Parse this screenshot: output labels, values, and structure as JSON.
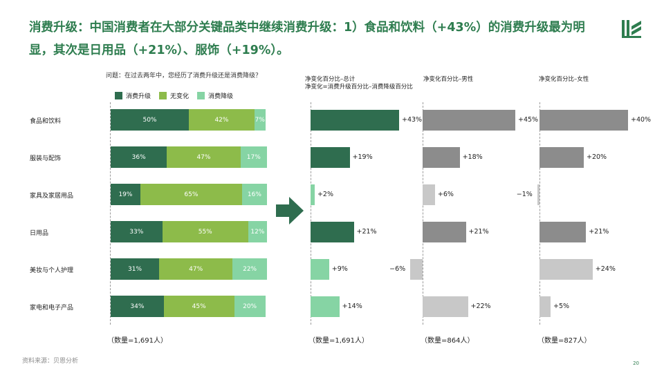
{
  "title": "消费升级：中国消费者在大部分关键品类中继续消费升级：1）食品和饮料（+43%）的消费升级最为明显，其次是日用品（+21%）、服饰（+19%）。",
  "page_number": "20",
  "source_text": "资料来源：贝恩分析",
  "colors": {
    "upgrade": "#2f6d4f",
    "same": "#8dbb4a",
    "downgrade": "#86d4a4",
    "total_dark": "#2f6d4f",
    "total_light": "#86d4a4",
    "gray_dark": "#8c8c8c",
    "gray_light": "#c8c8c8",
    "title": "#2e7d4f"
  },
  "chart_data": [
    {
      "type": "bar",
      "orientation": "horizontal",
      "stacked": true,
      "question": "问题：在过去两年中，您经历了消费升级还是消费降级？",
      "categories": [
        "食品和饮料",
        "服装与配饰",
        "家具及家居用品",
        "日用品",
        "美妆与个人护理",
        "家电和电子产品"
      ],
      "series": [
        {
          "name": "消费升级",
          "values": [
            50,
            36,
            19,
            33,
            31,
            34
          ]
        },
        {
          "name": "无变化",
          "values": [
            42,
            47,
            65,
            55,
            47,
            45
          ]
        },
        {
          "name": "消费降级",
          "values": [
            7,
            17,
            16,
            12,
            22,
            20
          ]
        }
      ],
      "unit": "%",
      "legend_position": "top",
      "count_label": "（数量=1,691人）"
    },
    {
      "type": "bar",
      "orientation": "horizontal",
      "title": "净变化百分比–总计",
      "subtitle": "净变化=消费升级百分比–消费降级百分比",
      "categories": [
        "食品和饮料",
        "服装与配饰",
        "家具及家居用品",
        "日用品",
        "美妆与个人护理",
        "家电和电子产品"
      ],
      "values": [
        43,
        19,
        2,
        21,
        9,
        14
      ],
      "labels": [
        "+43%",
        "+19%",
        "+2%",
        "+21%",
        "+9%",
        "+14%"
      ],
      "count_label": "（数量=1,691人）"
    },
    {
      "type": "bar",
      "orientation": "horizontal",
      "title": "净变化百分比–男性",
      "categories": [
        "食品和饮料",
        "服装与配饰",
        "家具及家居用品",
        "日用品",
        "美妆与个人护理",
        "家电和电子产品"
      ],
      "values": [
        45,
        18,
        6,
        21,
        -6,
        22
      ],
      "labels": [
        "+45%",
        "+18%",
        "+6%",
        "+21%",
        "−6%",
        "+22%"
      ],
      "count_label": "（数量=864人）"
    },
    {
      "type": "bar",
      "orientation": "horizontal",
      "title": "净变化百分比–女性",
      "categories": [
        "食品和饮料",
        "服装与配饰",
        "家具及家居用品",
        "日用品",
        "美妆与个人护理",
        "家电和电子产品"
      ],
      "values": [
        40,
        20,
        -1,
        21,
        24,
        5
      ],
      "labels": [
        "+40%",
        "+20%",
        "−1%",
        "+21%",
        "+24%",
        "+5%"
      ],
      "count_label": "（数量=827人）"
    }
  ]
}
